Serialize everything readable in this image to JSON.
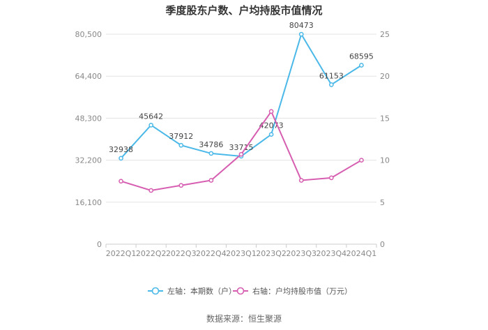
{
  "chart_data": {
    "type": "line",
    "title": "季度股东户数、户均持股市值情况",
    "categories": [
      "2022Q1",
      "2022Q2",
      "2022Q3",
      "2022Q4",
      "2023Q1",
      "2023Q2",
      "2023Q3",
      "2023Q4",
      "2024Q1"
    ],
    "series": [
      {
        "name": "左轴：本期数（户）",
        "axis": "left",
        "color": "#4ab8e8",
        "values": [
          32938,
          45642,
          37912,
          34786,
          33715,
          42073,
          80473,
          61153,
          68595
        ],
        "labels": [
          "32938",
          "45642",
          "37912",
          "34786",
          "33715",
          "42073",
          "80473",
          "61153",
          "68595"
        ]
      },
      {
        "name": "右轴：户均持股市值（万元）",
        "axis": "right",
        "color": "#d65db0",
        "values": [
          7.5,
          6.4,
          7.0,
          7.6,
          10.7,
          15.8,
          7.6,
          7.9,
          10.0
        ]
      }
    ],
    "y_left": {
      "ylim": [
        0,
        80500
      ],
      "ticks": [
        0,
        16100,
        32200,
        48300,
        64400,
        80500
      ],
      "tick_labels": [
        "0",
        "16,100",
        "32,200",
        "48,300",
        "64,400",
        "80,500"
      ]
    },
    "y_right": {
      "ylim": [
        0,
        25
      ],
      "ticks": [
        0,
        5,
        10,
        15,
        20,
        25
      ],
      "tick_labels": [
        "0",
        "5",
        "10",
        "15",
        "20",
        "25"
      ]
    },
    "grid": true,
    "legend_position": "bottom-center"
  },
  "source_text": "数据来源：恒生聚源"
}
